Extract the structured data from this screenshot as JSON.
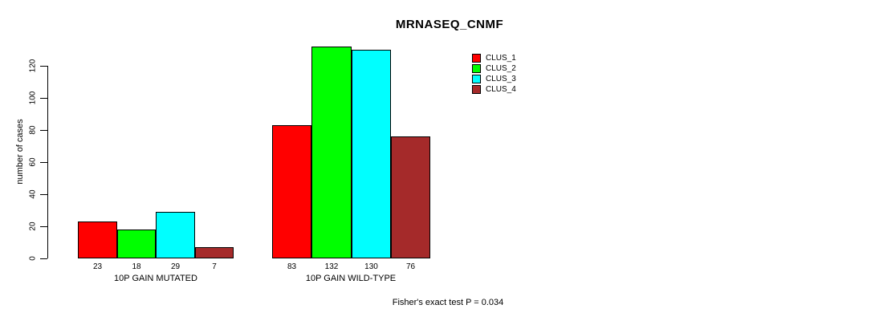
{
  "chart_data": {
    "type": "bar",
    "title": "MRNASEQ_CNMF",
    "ylabel": "number of cases",
    "xlabel": "",
    "categories": [
      "10P GAIN MUTATED",
      "10P GAIN WILD-TYPE"
    ],
    "series": [
      {
        "name": "CLUS_1",
        "color": "#FF0000",
        "values": [
          23,
          83
        ]
      },
      {
        "name": "CLUS_2",
        "color": "#00FF00",
        "values": [
          18,
          132
        ]
      },
      {
        "name": "CLUS_3",
        "color": "#00FFFF",
        "values": [
          29,
          130
        ]
      },
      {
        "name": "CLUS_4",
        "color": "#A52A2A",
        "values": [
          7,
          76
        ]
      }
    ],
    "y_ticks": [
      0,
      20,
      40,
      60,
      80,
      100,
      120
    ],
    "ylim": [
      0,
      132
    ],
    "bar_value_labels": [
      [
        23,
        18,
        29,
        7
      ],
      [
        83,
        132,
        130,
        76
      ]
    ],
    "legend_position": "top-right",
    "legend_entries": [
      "CLUS_1",
      "CLUS_2",
      "CLUS_3",
      "CLUS_4"
    ],
    "annotation": "Fisher's exact test P = 0.034",
    "grid": false,
    "background_color": "#FFFFFF",
    "text_color": "#000000"
  }
}
